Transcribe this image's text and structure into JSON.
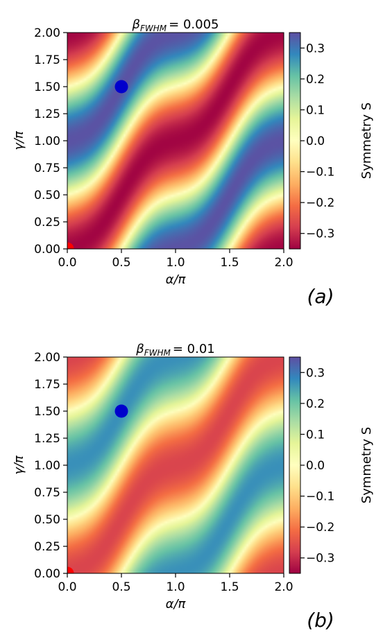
{
  "chart_data": [
    {
      "type": "heatmap",
      "panel_label": "(a)",
      "title_symbol": "β",
      "title_sub": "FWHM",
      "title_value": "= 0.005",
      "xlabel": "α/π",
      "ylabel": "γ/π",
      "xlim": [
        0,
        2
      ],
      "ylim": [
        0,
        2
      ],
      "x_ticks": [
        "0.0",
        "0.5",
        "1.0",
        "1.5",
        "2.0"
      ],
      "y_ticks": [
        "0.00",
        "0.25",
        "0.50",
        "0.75",
        "1.00",
        "1.25",
        "1.50",
        "1.75",
        "2.00"
      ],
      "colorbar": {
        "label": "Symmetry S",
        "min": -0.35,
        "max": 0.35,
        "ticks": [
          "0.3",
          "0.2",
          "0.1",
          "0.0",
          "−0.1",
          "−0.2",
          "−0.3"
        ],
        "colormap": "Spectral"
      },
      "amplitude": 0.345,
      "grid": false,
      "markers": [
        {
          "x": 0.0,
          "y": 0.0,
          "color": "#ff0000"
        },
        {
          "x": 0.5,
          "y": 1.5,
          "color": "#0000cc"
        }
      ]
    },
    {
      "type": "heatmap",
      "panel_label": "(b)",
      "title_symbol": "β",
      "title_sub": "FWHM",
      "title_value": "= 0.01",
      "xlabel": "α/π",
      "ylabel": "γ/π",
      "xlim": [
        0,
        2
      ],
      "ylim": [
        0,
        2
      ],
      "x_ticks": [
        "0.0",
        "0.5",
        "1.0",
        "1.5",
        "2.0"
      ],
      "y_ticks": [
        "0.00",
        "0.25",
        "0.50",
        "0.75",
        "1.00",
        "1.25",
        "1.50",
        "1.75",
        "2.00"
      ],
      "colorbar": {
        "label": "Symmetry S",
        "min": -0.35,
        "max": 0.35,
        "ticks": [
          "0.3",
          "0.2",
          "0.1",
          "0.0",
          "−0.1",
          "−0.2",
          "−0.3"
        ],
        "colormap": "Spectral"
      },
      "amplitude": 0.27,
      "grid": false,
      "markers": [
        {
          "x": 0.0,
          "y": 0.0,
          "color": "#ff0000"
        },
        {
          "x": 0.5,
          "y": 1.5,
          "color": "#0000cc"
        }
      ]
    }
  ]
}
